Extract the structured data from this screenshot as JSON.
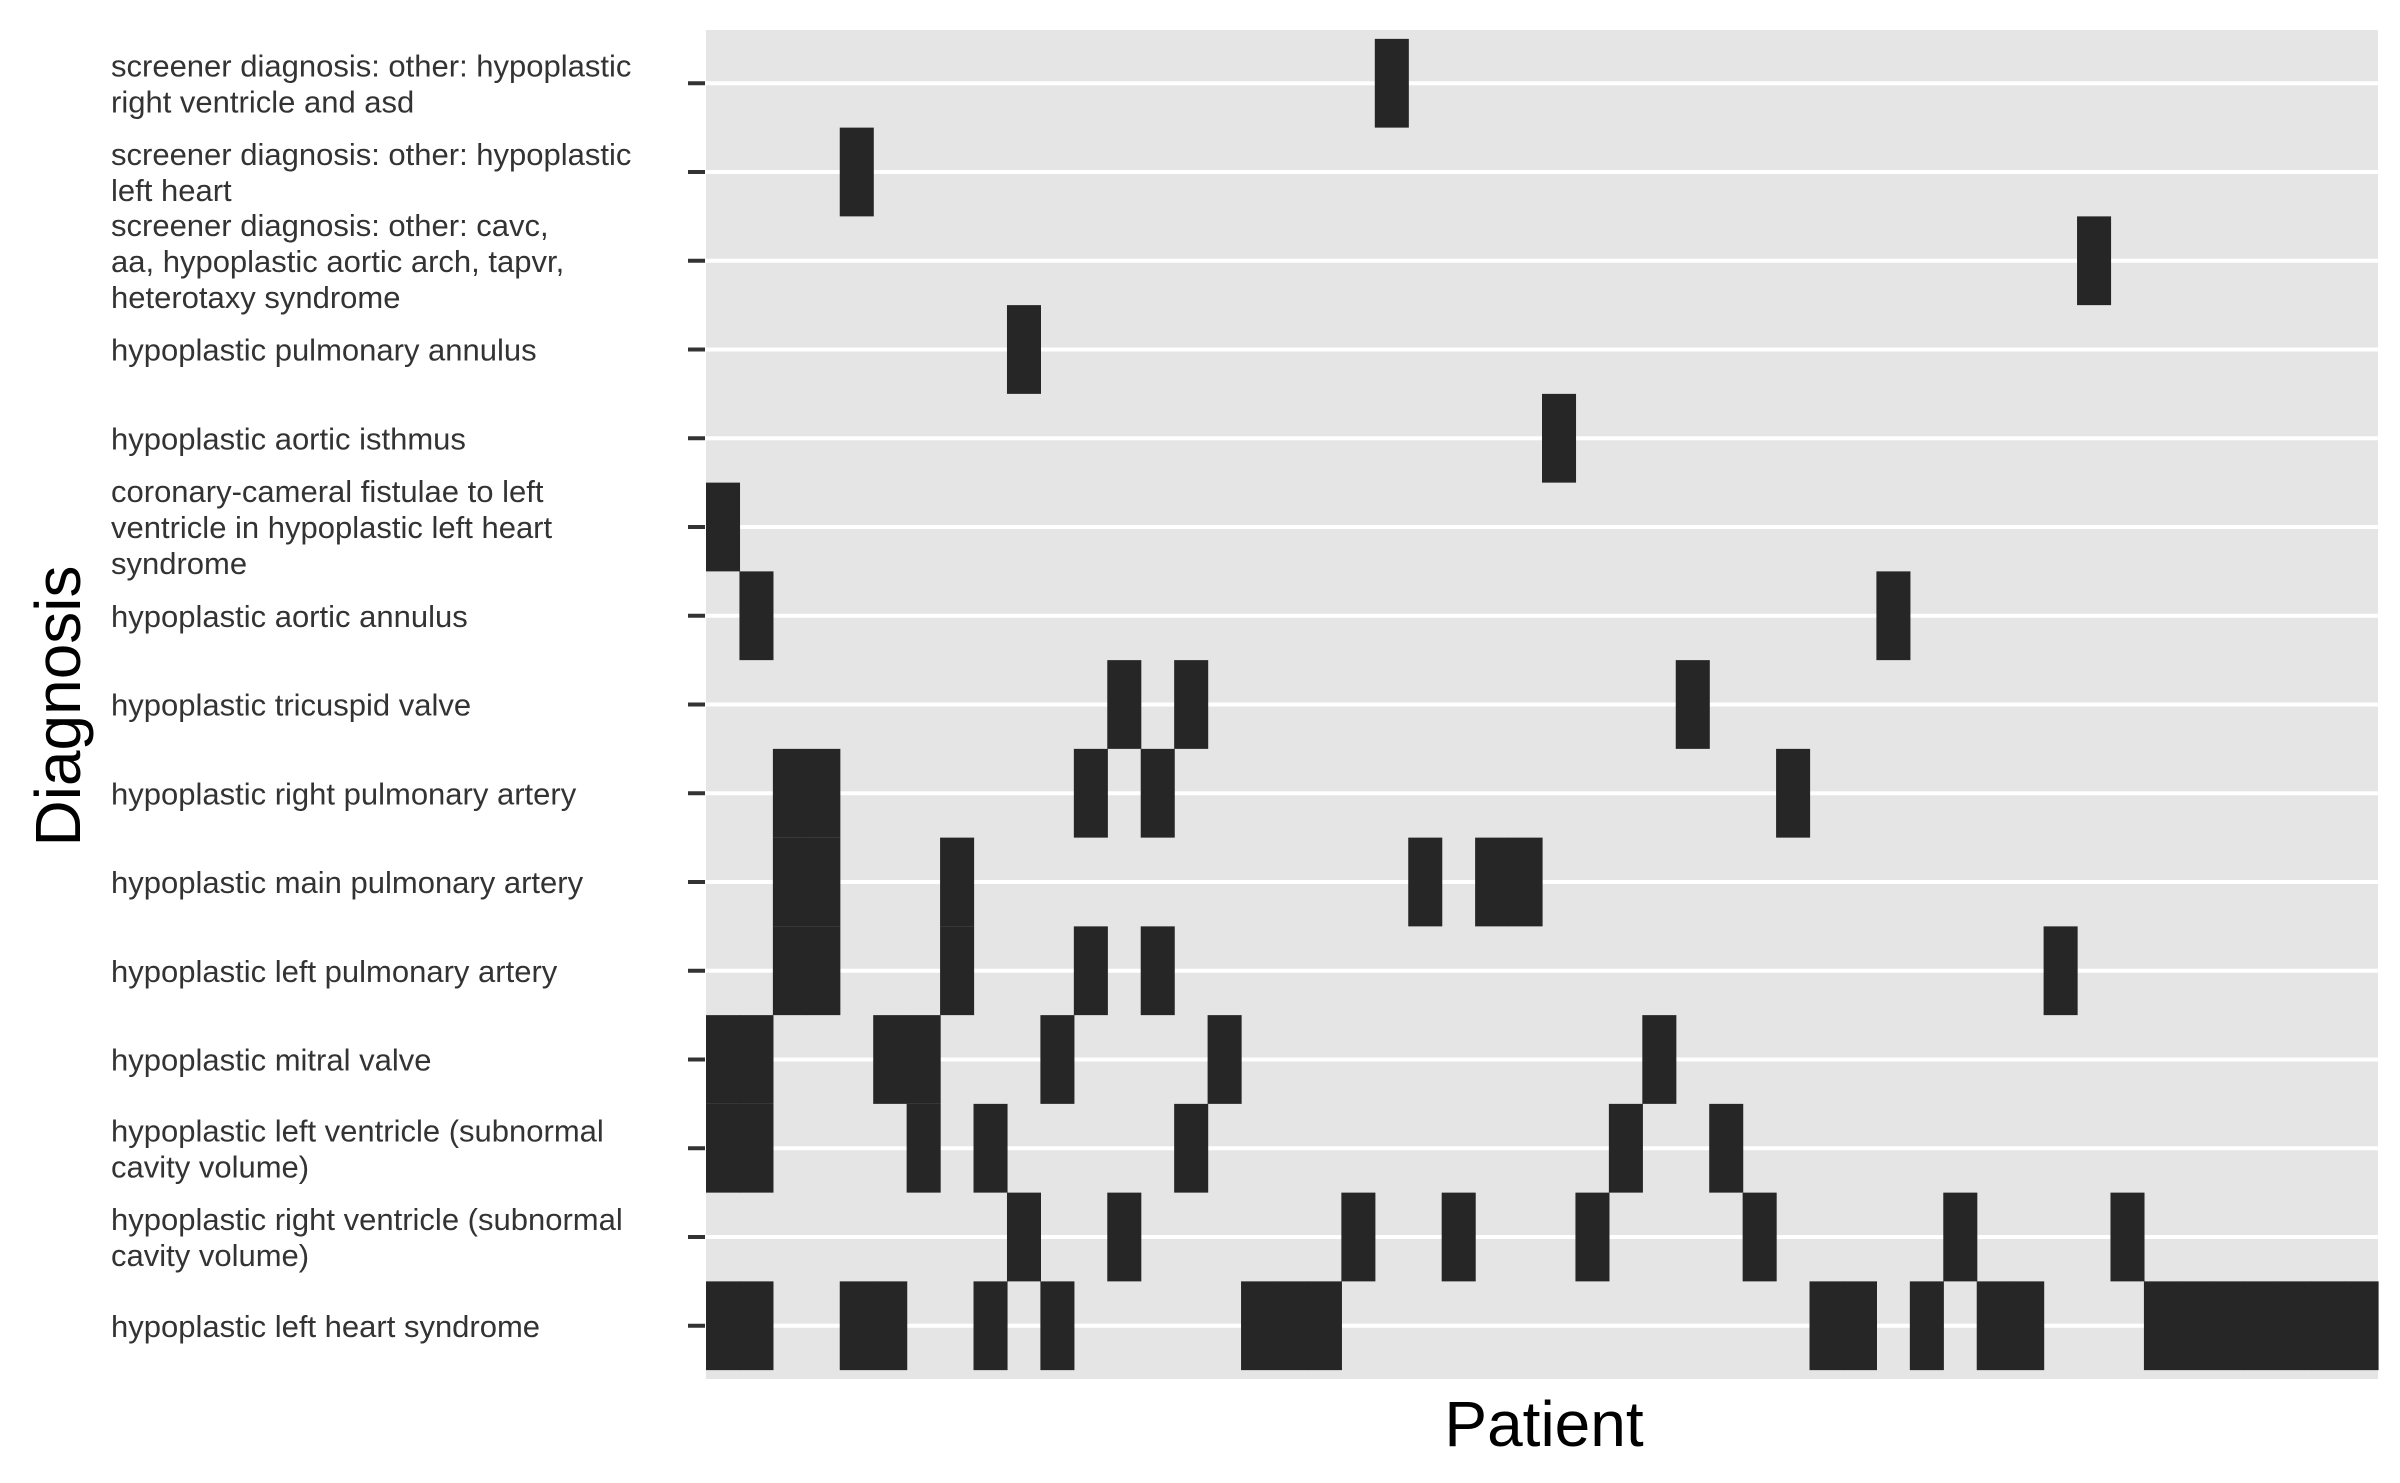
{
  "chart_data": {
    "type": "heatmap",
    "xlabel": "Patient",
    "ylabel": "Diagnosis",
    "n_patients": 50,
    "legend": "none",
    "grid": true,
    "rows": [
      {
        "label": "screener diagnosis: other: hypoplastic right ventricle and asd",
        "lines": [
          "screener diagnosis: other: hypoplastic",
          "right ventricle and asd"
        ],
        "patients": [
          20
        ]
      },
      {
        "label": "screener diagnosis: other: hypoplastic left heart",
        "lines": [
          "screener diagnosis: other: hypoplastic",
          "left heart"
        ],
        "patients": [
          4
        ]
      },
      {
        "label": "screener diagnosis: other: cavc, aa, hypoplastic aortic arch, tapvr, heterotaxy syndrome",
        "lines": [
          "screener diagnosis: other: cavc,",
          "aa, hypoplastic aortic arch, tapvr,",
          "heterotaxy syndrome"
        ],
        "patients": [
          41
        ]
      },
      {
        "label": "hypoplastic pulmonary annulus",
        "lines": [
          "hypoplastic pulmonary annulus"
        ],
        "patients": [
          9
        ]
      },
      {
        "label": "hypoplastic aortic isthmus",
        "lines": [
          "hypoplastic aortic isthmus"
        ],
        "patients": [
          25
        ]
      },
      {
        "label": "coronary-cameral fistulae to left ventricle in hypoplastic left heart syndrome",
        "lines": [
          "coronary-cameral fistulae to left",
          "ventricle in hypoplastic left heart",
          "syndrome"
        ],
        "patients": [
          0
        ]
      },
      {
        "label": "hypoplastic aortic annulus",
        "lines": [
          "hypoplastic aortic annulus"
        ],
        "patients": [
          1,
          35
        ]
      },
      {
        "label": "hypoplastic tricuspid valve",
        "lines": [
          "hypoplastic tricuspid valve"
        ],
        "patients": [
          12,
          14,
          29
        ]
      },
      {
        "label": "hypoplastic right pulmonary artery",
        "lines": [
          "hypoplastic right pulmonary artery"
        ],
        "patients": [
          2,
          3,
          11,
          13,
          32
        ]
      },
      {
        "label": "hypoplastic main pulmonary artery",
        "lines": [
          "hypoplastic main pulmonary artery"
        ],
        "patients": [
          2,
          3,
          7,
          21,
          23,
          24
        ]
      },
      {
        "label": "hypoplastic left pulmonary artery",
        "lines": [
          "hypoplastic left pulmonary artery"
        ],
        "patients": [
          2,
          3,
          7,
          11,
          13,
          40
        ]
      },
      {
        "label": "hypoplastic mitral valve",
        "lines": [
          "hypoplastic mitral valve"
        ],
        "patients": [
          0,
          1,
          5,
          6,
          10,
          15,
          28
        ]
      },
      {
        "label": "hypoplastic left ventricle (subnormal cavity volume)",
        "lines": [
          "hypoplastic left ventricle (subnormal",
          "cavity volume)"
        ],
        "patients": [
          0,
          1,
          6,
          8,
          14,
          27,
          30
        ]
      },
      {
        "label": "hypoplastic right ventricle (subnormal cavity volume)",
        "lines": [
          "hypoplastic right ventricle (subnormal",
          "cavity volume)"
        ],
        "patients": [
          9,
          12,
          19,
          22,
          26,
          31,
          37,
          42
        ]
      },
      {
        "label": "hypoplastic left heart syndrome",
        "lines": [
          "hypoplastic left heart syndrome"
        ],
        "patients": [
          0,
          1,
          4,
          5,
          8,
          10,
          16,
          17,
          18,
          33,
          34,
          36,
          38,
          39,
          43,
          44,
          45,
          46,
          47,
          48,
          49
        ]
      }
    ]
  },
  "colors": {
    "panel": "#e5e5e5",
    "grid": "#ffffff",
    "tile": "#262626",
    "tick": "#333333",
    "text": "#333333"
  }
}
